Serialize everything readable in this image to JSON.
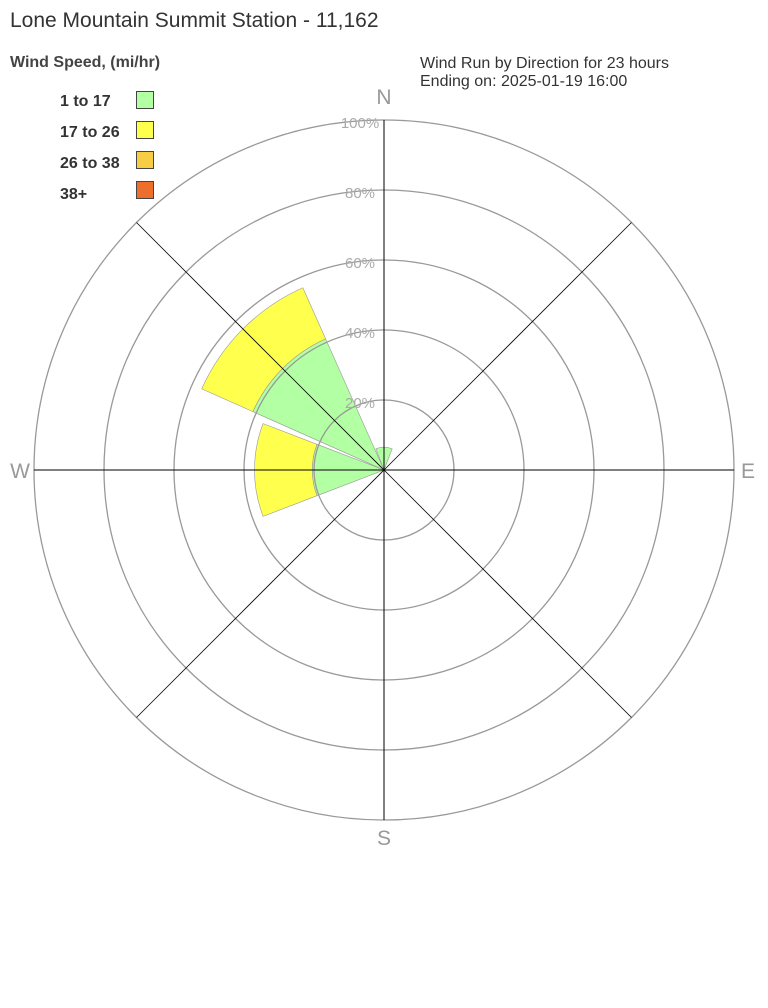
{
  "chart_data": {
    "type": "wind-rose",
    "title": "Lone Mountain Summit Station - 11,162",
    "legend_title": "Wind Speed, (mi/hr)",
    "info_line1": "Wind Run by Direction for 23 hours",
    "info_line2": "Ending on: 2025-01-19 16:00",
    "compass": [
      "N",
      "E",
      "S",
      "W"
    ],
    "ring_labels": [
      "20%",
      "40%",
      "60%",
      "80%",
      "100%"
    ],
    "rlim": [
      0,
      100
    ],
    "legend_placement": "top-left",
    "bins": [
      {
        "label": "1 to 17",
        "color": "#b3ffa3"
      },
      {
        "label": "17 to 26",
        "color": "#ffff4d"
      },
      {
        "label": "26 to 38",
        "color": "#f7cd45"
      },
      {
        "label": "38+",
        "color": "#ee6e2e"
      }
    ],
    "directions": [
      {
        "dir": "N",
        "deg": 0,
        "values": [
          6.5,
          0,
          0,
          0
        ]
      },
      {
        "dir": "W",
        "deg": 270,
        "values": [
          20.5,
          16.5,
          0,
          0
        ]
      },
      {
        "dir": "NW",
        "deg": 315,
        "values": [
          41,
          16,
          0,
          0
        ]
      }
    ]
  }
}
